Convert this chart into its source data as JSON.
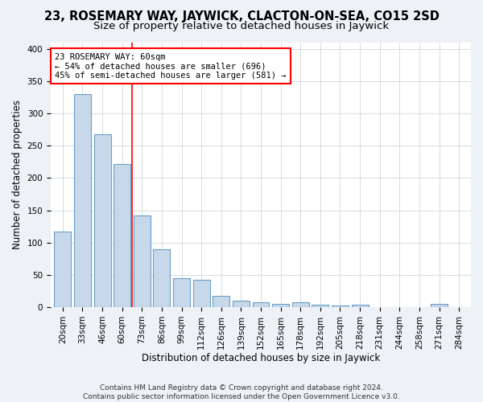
{
  "title": "23, ROSEMARY WAY, JAYWICK, CLACTON-ON-SEA, CO15 2SD",
  "subtitle": "Size of property relative to detached houses in Jaywick",
  "xlabel": "Distribution of detached houses by size in Jaywick",
  "ylabel": "Number of detached properties",
  "categories": [
    "20sqm",
    "33sqm",
    "46sqm",
    "60sqm",
    "73sqm",
    "86sqm",
    "99sqm",
    "112sqm",
    "126sqm",
    "139sqm",
    "152sqm",
    "165sqm",
    "178sqm",
    "192sqm",
    "205sqm",
    "218sqm",
    "231sqm",
    "244sqm",
    "258sqm",
    "271sqm",
    "284sqm"
  ],
  "values": [
    117,
    330,
    267,
    222,
    142,
    90,
    45,
    42,
    18,
    10,
    7,
    5,
    7,
    4,
    3,
    4,
    0,
    0,
    0,
    5,
    0
  ],
  "bar_color": "#c8d8eb",
  "bar_edgecolor": "#6a9fc8",
  "bar_linewidth": 0.8,
  "redline_x": 3.5,
  "annotation_line1": "23 ROSEMARY WAY: 60sqm",
  "annotation_line2": "← 54% of detached houses are smaller (696)",
  "annotation_line3": "45% of semi-detached houses are larger (581) →",
  "annotation_fontsize": 7.5,
  "ylim": [
    0,
    410
  ],
  "yticks": [
    0,
    50,
    100,
    150,
    200,
    250,
    300,
    350,
    400
  ],
  "grid_color": "#c8d0d8",
  "bg_color": "#eef2f6",
  "plot_bg_color": "#ffffff",
  "footnote": "Contains HM Land Registry data © Crown copyright and database right 2024.\nContains public sector information licensed under the Open Government Licence v3.0.",
  "title_fontsize": 10.5,
  "subtitle_fontsize": 9.5,
  "xlabel_fontsize": 8.5,
  "ylabel_fontsize": 8.5,
  "tick_fontsize": 7.5,
  "footnote_fontsize": 6.5
}
